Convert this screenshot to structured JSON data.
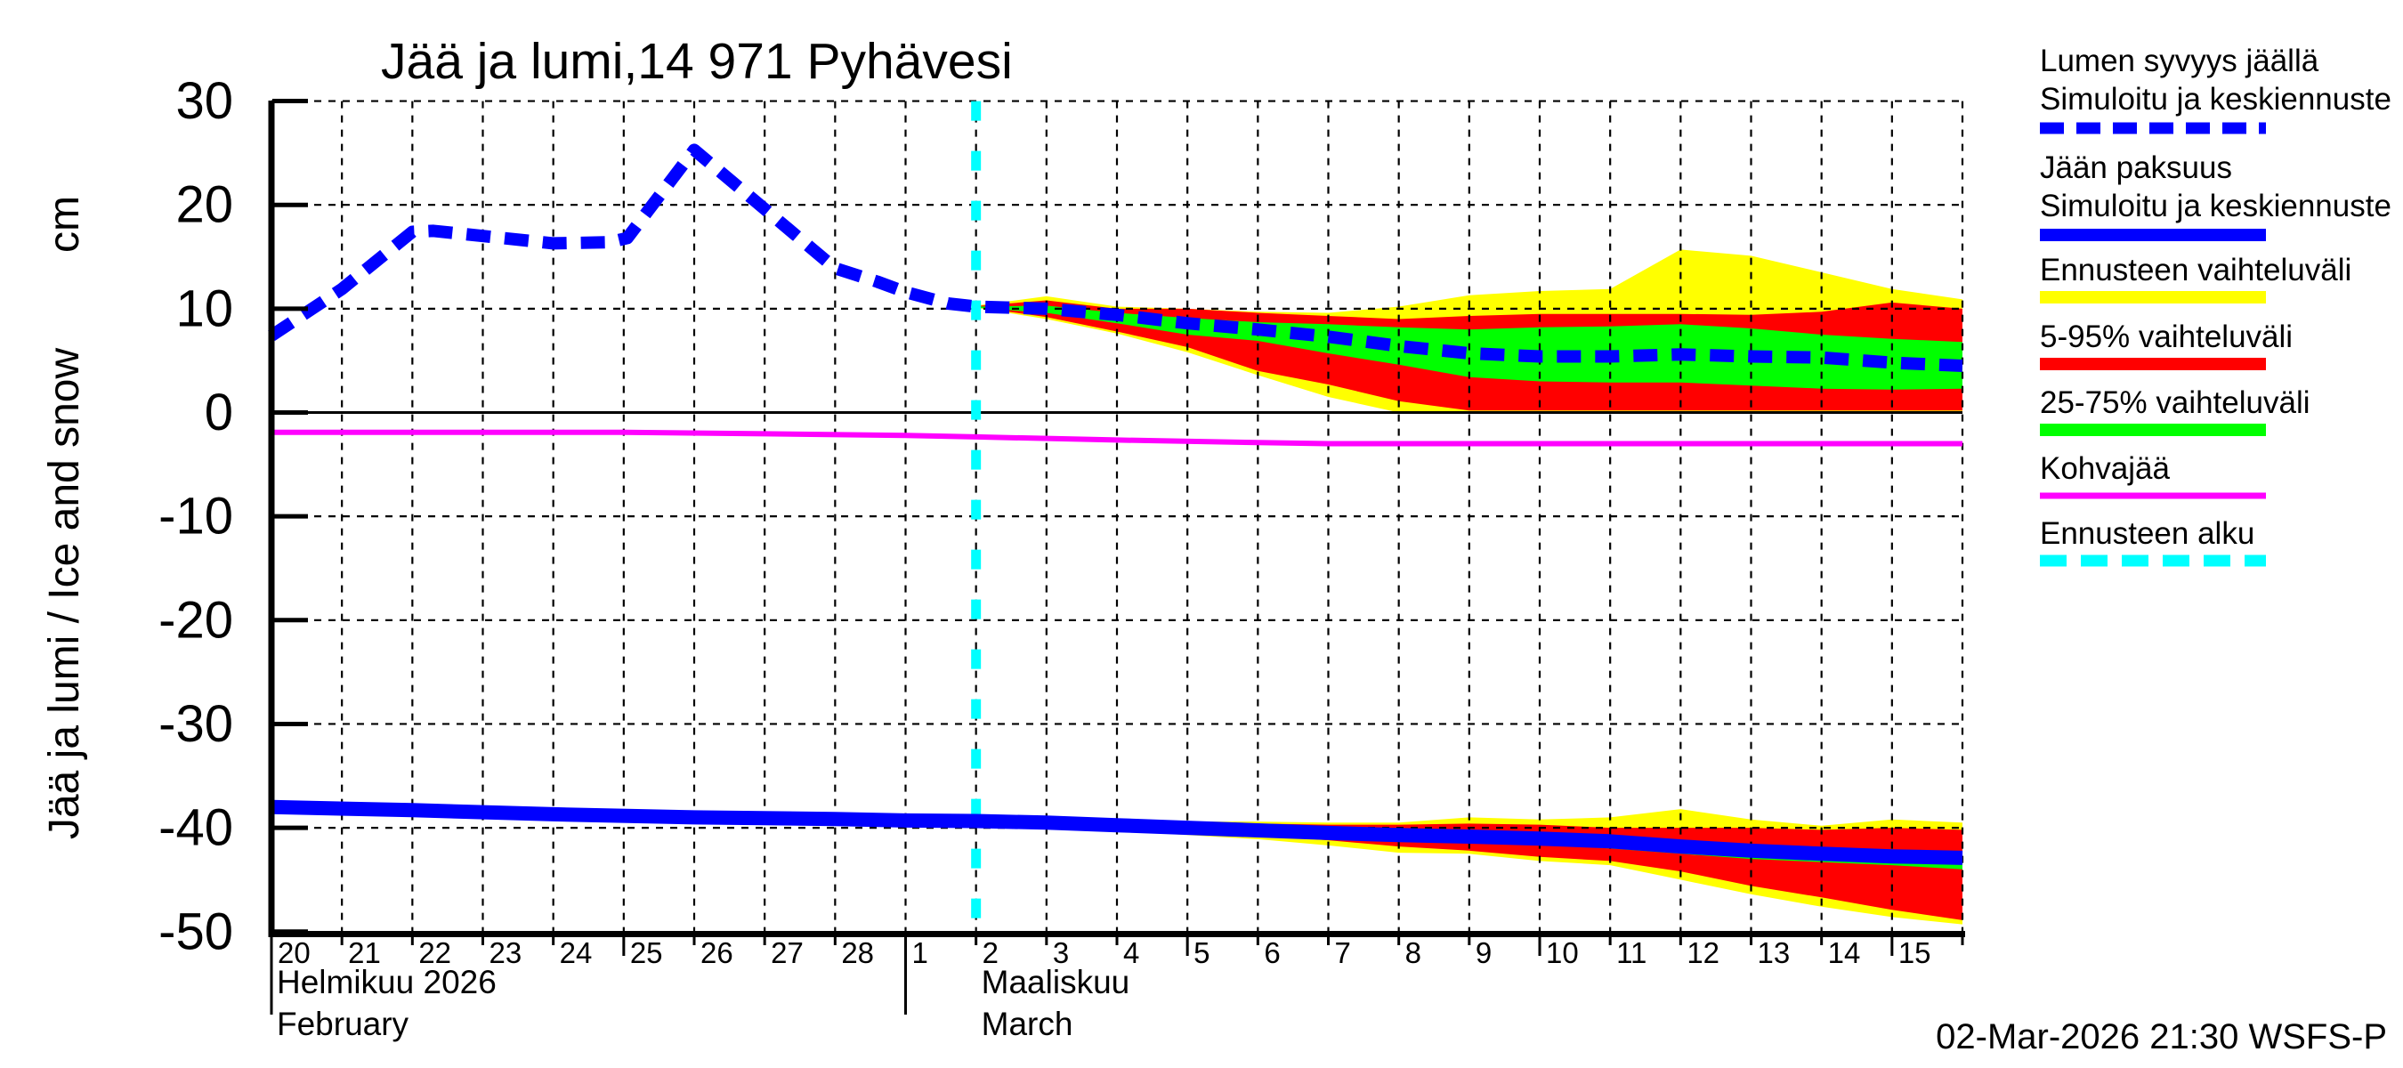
{
  "title": "Jää ja lumi,14 971 Pyhävesi",
  "footer": "02-Mar-2026 21:30 WSFS-P",
  "colors": {
    "blue": "#0000ff",
    "yellow": "#ffff00",
    "red": "#ff0000",
    "green": "#00ff00",
    "magenta": "#ff00ff",
    "cyan": "#00ffff",
    "axis": "#000000"
  },
  "legend": [
    {
      "lines": [
        "Lumen syvyys jäällä",
        "Simuloitu ja keskiennuste"
      ],
      "swatch": "dashed",
      "color": "#0000ff"
    },
    {
      "lines": [
        "Jään paksuus",
        "Simuloitu ja keskiennuste"
      ],
      "swatch": "solid",
      "color": "#0000ff"
    },
    {
      "lines": [
        "Ennusteen vaihteluväli"
      ],
      "swatch": "solid",
      "color": "#ffff00"
    },
    {
      "lines": [
        "5-95% vaihteluväli"
      ],
      "swatch": "solid",
      "color": "#ff0000"
    },
    {
      "lines": [
        "25-75% vaihteluväli"
      ],
      "swatch": "solid",
      "color": "#00ff00"
    },
    {
      "lines": [
        "Kohvajää"
      ],
      "swatch": "thin",
      "color": "#ff00ff"
    },
    {
      "lines": [
        "Ennusteen alku"
      ],
      "swatch": "dashed",
      "color": "#00ffff"
    }
  ],
  "chart_data": {
    "type": "line",
    "title": "Jää ja lumi,14 971 Pyhävesi",
    "ylabel": "Jää ja lumi / Ice and snow",
    "y_unit": "cm",
    "ylim": [
      -50,
      30
    ],
    "y_ticks": [
      30,
      20,
      10,
      0,
      -10,
      -20,
      -30,
      -40,
      -50
    ],
    "x_unit": "days since 20 Feb 2026",
    "xlim_days": [
      0,
      24
    ],
    "day_labels": [
      "20",
      "21",
      "22",
      "23",
      "24",
      "25",
      "26",
      "27",
      "28",
      "1",
      "2",
      "3",
      "4",
      "5",
      "6",
      "7",
      "8",
      "9",
      "10",
      "11",
      "12",
      "13",
      "14",
      "15"
    ],
    "major_tick_days": [
      5,
      13,
      18,
      23
    ],
    "month_separator_days": [
      0,
      9
    ],
    "months": [
      {
        "at_day": 0,
        "line1": "Helmikuu 2026",
        "line2": "February"
      },
      {
        "at_day": 10,
        "line1": "Maaliskuu",
        "line2": "March"
      }
    ],
    "forecast_start_day": 10,
    "grid": "dashed",
    "legend_position": "outside-right",
    "series": [
      {
        "name": "snow-depth-on-ice-mean",
        "legend": "Lumen syvyys jäällä, Simuloitu ja keskiennuste",
        "style": "dashed",
        "color": "#0000ff",
        "width": 14,
        "points": [
          [
            0,
            7.4
          ],
          [
            1,
            11.9
          ],
          [
            2,
            17.4
          ],
          [
            2.3,
            17.5
          ],
          [
            4,
            16.3
          ],
          [
            4.8,
            16.4
          ],
          [
            5.05,
            16.8
          ],
          [
            6,
            25.3
          ],
          [
            7,
            19.6
          ],
          [
            8,
            13.9
          ],
          [
            8.6,
            12.6
          ],
          [
            9,
            11.6
          ],
          [
            9.6,
            10.5
          ],
          [
            10,
            10.2
          ],
          [
            11,
            10.0
          ],
          [
            12,
            9.4
          ],
          [
            13,
            8.6
          ],
          [
            14,
            8.0
          ],
          [
            15,
            7.3
          ],
          [
            16,
            6.4
          ],
          [
            17,
            5.7
          ],
          [
            18,
            5.4
          ],
          [
            19,
            5.4
          ],
          [
            20,
            5.6
          ],
          [
            21,
            5.4
          ],
          [
            22,
            5.3
          ],
          [
            23,
            4.8
          ],
          [
            24,
            4.5
          ]
        ]
      },
      {
        "name": "ice-thickness-mean",
        "legend": "Jään paksuus, Simuloitu ja keskiennuste",
        "style": "solid",
        "color": "#0000ff",
        "width": 16,
        "points": [
          [
            0,
            -38.0
          ],
          [
            2,
            -38.3
          ],
          [
            4,
            -38.7
          ],
          [
            6,
            -39.0
          ],
          [
            8,
            -39.15
          ],
          [
            9,
            -39.3
          ],
          [
            10,
            -39.35
          ],
          [
            11,
            -39.5
          ],
          [
            12,
            -39.75
          ],
          [
            13,
            -40.0
          ],
          [
            14,
            -40.25
          ],
          [
            15,
            -40.5
          ],
          [
            16,
            -40.7
          ],
          [
            17,
            -40.85
          ],
          [
            18,
            -41.05
          ],
          [
            19,
            -41.3
          ],
          [
            20,
            -41.8
          ],
          [
            21,
            -42.2
          ],
          [
            22,
            -42.5
          ],
          [
            23,
            -42.75
          ],
          [
            24,
            -42.9
          ]
        ]
      },
      {
        "name": "kohvajaa",
        "legend": "Kohvajää",
        "style": "solid",
        "color": "#ff00ff",
        "width": 6,
        "points": [
          [
            0,
            -1.9
          ],
          [
            5,
            -1.9
          ],
          [
            7,
            -2.05
          ],
          [
            9,
            -2.2
          ],
          [
            10,
            -2.35
          ],
          [
            12,
            -2.65
          ],
          [
            14,
            -2.9
          ],
          [
            15,
            -3.0
          ],
          [
            24,
            -3.0
          ]
        ]
      }
    ],
    "bands": [
      {
        "name": "snow-forecast-range",
        "legend": "Ennusteen vaihteluväli",
        "color": "#ffff00",
        "days": [
          10,
          11,
          12,
          13,
          14,
          15,
          16,
          17,
          18,
          19,
          20,
          21,
          22,
          23,
          24
        ],
        "top": [
          10.3,
          11.2,
          10.2,
          10.0,
          9.7,
          9.6,
          10.2,
          11.3,
          11.7,
          11.9,
          15.7,
          15.1,
          13.5,
          11.9,
          10.9
        ],
        "bottom": [
          10.1,
          9.0,
          7.6,
          5.8,
          3.6,
          1.5,
          0.0,
          0.0,
          0.0,
          0.0,
          0.0,
          0.0,
          0.0,
          0.0,
          0.0
        ]
      },
      {
        "name": "snow-5-95",
        "legend": "5-95% vaihteluväli",
        "color": "#ff0000",
        "days": [
          10,
          11,
          12,
          13,
          14,
          15,
          16,
          17,
          18,
          19,
          20,
          21,
          22,
          23,
          24
        ],
        "top": [
          10.25,
          10.8,
          10.0,
          10.0,
          9.6,
          9.3,
          9.0,
          9.3,
          9.5,
          9.5,
          9.5,
          9.4,
          9.7,
          10.6,
          10.0
        ],
        "bottom": [
          10.15,
          9.2,
          7.8,
          6.3,
          4.0,
          2.7,
          1.1,
          0.2,
          0.2,
          0.2,
          0.2,
          0.2,
          0.2,
          0.2,
          0.2
        ]
      },
      {
        "name": "snow-25-75",
        "legend": "25-75% vaihteluväli",
        "color": "#00ff00",
        "days": [
          10,
          11,
          12,
          13,
          14,
          15,
          16,
          17,
          18,
          19,
          20,
          21,
          22,
          23,
          24
        ],
        "top": [
          10.2,
          10.3,
          9.6,
          9.1,
          8.7,
          8.5,
          8.2,
          8.0,
          8.2,
          8.3,
          8.5,
          8.1,
          7.5,
          7.1,
          6.8
        ],
        "bottom": [
          10.1,
          9.6,
          8.6,
          7.5,
          6.9,
          5.7,
          4.6,
          3.4,
          3.0,
          2.9,
          2.9,
          2.6,
          2.3,
          2.2,
          2.3
        ]
      },
      {
        "name": "ice-forecast-range",
        "legend": "Ennusteen vaihteluväli",
        "color": "#ffff00",
        "days": [
          10,
          11,
          12,
          13,
          14,
          15,
          16,
          17,
          18,
          19,
          20,
          21,
          22,
          23,
          24
        ],
        "top": [
          -39.2,
          -39.3,
          -39.3,
          -39.4,
          -39.4,
          -39.5,
          -39.5,
          -39.0,
          -39.2,
          -39.0,
          -38.2,
          -39.2,
          -39.8,
          -39.2,
          -39.5
        ],
        "bottom": [
          -39.6,
          -39.9,
          -40.3,
          -40.7,
          -41.1,
          -41.7,
          -42.4,
          -42.5,
          -43.2,
          -43.6,
          -45.0,
          -46.4,
          -47.6,
          -48.6,
          -49.3
        ]
      },
      {
        "name": "ice-5-95",
        "legend": "5-95% vaihteluväli",
        "color": "#ff0000",
        "days": [
          10,
          11,
          12,
          13,
          14,
          15,
          16,
          17,
          18,
          19,
          20,
          21,
          22,
          23,
          24
        ],
        "top": [
          -39.25,
          -39.4,
          -39.5,
          -39.6,
          -39.6,
          -39.7,
          -39.7,
          -39.6,
          -39.7,
          -40.0,
          -40.0,
          -40.0,
          -40.2,
          -40.0,
          -40.2
        ],
        "bottom": [
          -39.5,
          -39.8,
          -40.1,
          -40.4,
          -40.7,
          -41.2,
          -41.8,
          -42.2,
          -42.8,
          -43.2,
          -44.2,
          -45.6,
          -46.7,
          -47.9,
          -48.9
        ]
      },
      {
        "name": "ice-25-75",
        "legend": "25-75% vaihteluväli",
        "color": "#00ff00",
        "days": [
          10,
          11,
          12,
          13,
          14,
          15,
          16,
          17,
          18,
          19,
          20,
          21,
          22,
          23,
          24
        ],
        "top": [
          -39.3,
          -39.5,
          -39.7,
          -39.9,
          -40.1,
          -40.3,
          -40.5,
          -40.6,
          -40.8,
          -41.0,
          -41.4,
          -41.8,
          -42.0,
          -42.3,
          -42.4
        ],
        "bottom": [
          -39.45,
          -39.75,
          -40.0,
          -40.25,
          -40.5,
          -40.75,
          -41.0,
          -41.3,
          -41.6,
          -42.0,
          -42.5,
          -43.0,
          -43.3,
          -43.6,
          -44.0
        ]
      }
    ]
  }
}
